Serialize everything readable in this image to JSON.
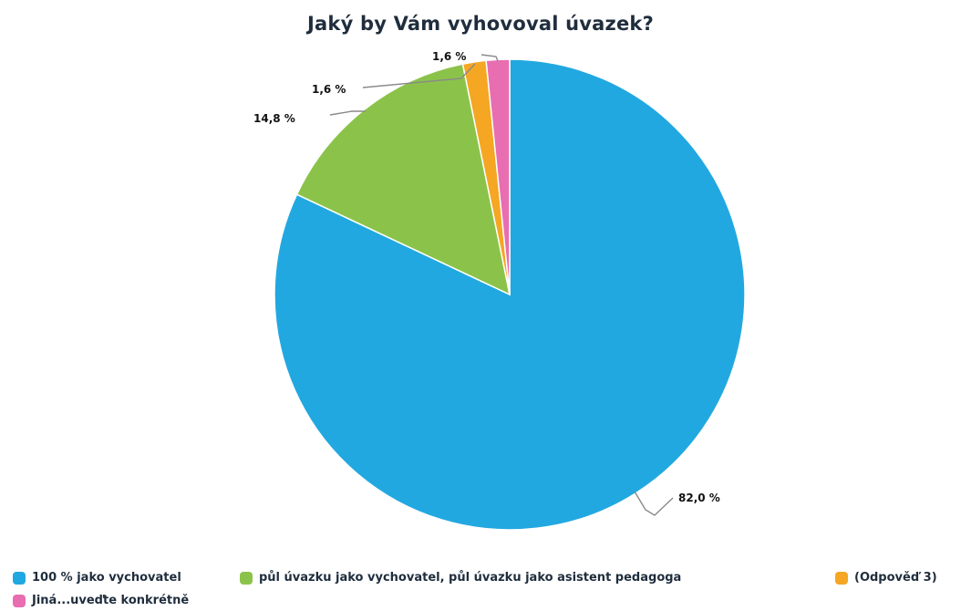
{
  "chart_data": {
    "type": "pie",
    "title": "Jaký by Vám vyhovoval úvazek?",
    "slices": [
      {
        "name": "100 % jako vychovatel",
        "value": 82.0,
        "label": "82,0 %",
        "color": "#22a8e0"
      },
      {
        "name": "půl úvazku jako vychovatel, půl úvazku jako asistent pedagoga",
        "value": 14.8,
        "label": "14,8 %",
        "color": "#8bc34a"
      },
      {
        "name": "(Odpověď 3)",
        "value": 1.6,
        "label": "1,6 %",
        "color": "#f5a623"
      },
      {
        "name": "Jiná...uveďte konkrétně",
        "value": 1.6,
        "label": "1,6 %",
        "color": "#e86db1"
      }
    ],
    "legend_position": "bottom"
  }
}
